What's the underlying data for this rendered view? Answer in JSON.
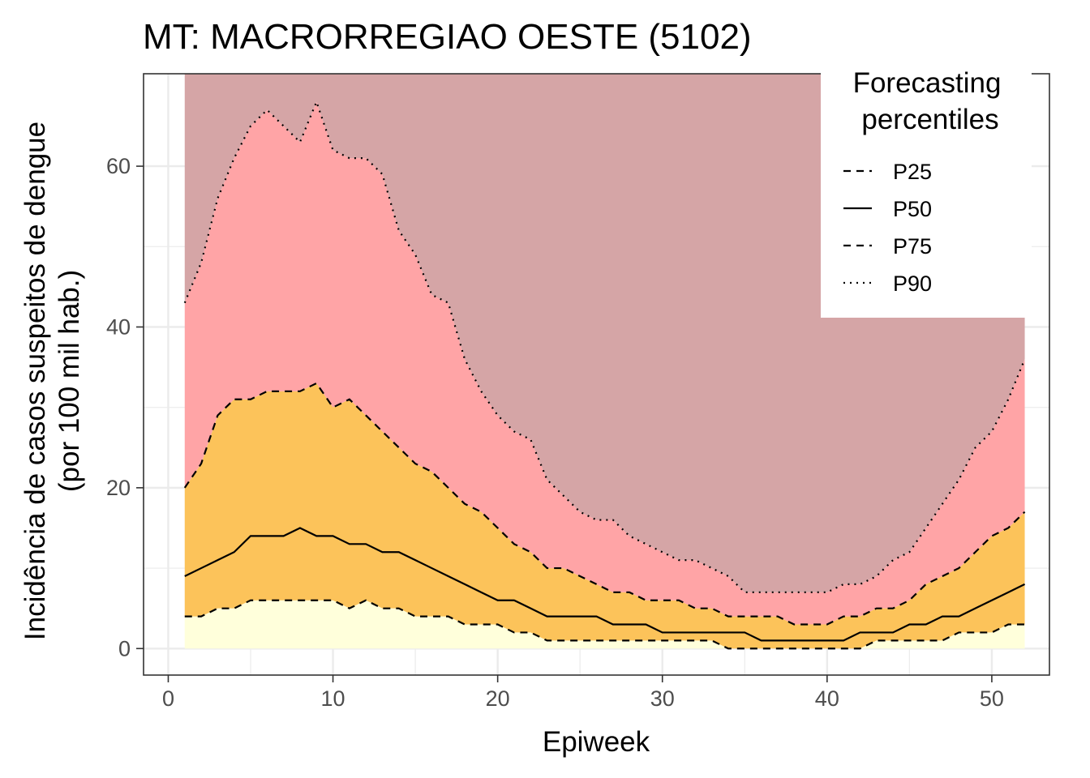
{
  "chart_data": {
    "type": "area",
    "title": "MT: MACRORREGIAO OESTE (5102)",
    "xlabel": "Epiweek",
    "ylabel_line1": "Incidência de casos suspeitos de dengue",
    "ylabel_line2": "(por 100 mil hab.)",
    "xlim": [
      -1.5,
      53.5
    ],
    "ylim": [
      -3.3,
      71.5
    ],
    "x_ticks": [
      0,
      10,
      20,
      30,
      40,
      50
    ],
    "y_ticks": [
      0,
      20,
      40,
      60
    ],
    "grid": true,
    "legend": {
      "title_line1": "Forecasting",
      "title_line2": "percentiles",
      "position": "top-right",
      "entries": [
        "P25",
        "P50",
        "P75",
        "P90"
      ]
    },
    "band_colors": {
      "below_p25": "#ffffdb",
      "p25_p75": "#fcc35a",
      "p75_p90": "#ffa4a6",
      "above_p90": "#d5a5a6"
    },
    "x": [
      1,
      2,
      3,
      4,
      5,
      6,
      7,
      8,
      9,
      10,
      11,
      12,
      13,
      14,
      15,
      16,
      17,
      18,
      19,
      20,
      21,
      22,
      23,
      24,
      25,
      26,
      27,
      28,
      29,
      30,
      31,
      32,
      33,
      34,
      35,
      36,
      37,
      38,
      39,
      40,
      41,
      42,
      43,
      44,
      45,
      46,
      47,
      48,
      49,
      50,
      51,
      52
    ],
    "series": [
      {
        "name": "P25",
        "dash": "dashed",
        "values": [
          4,
          4,
          5,
          5,
          6,
          6,
          6,
          6,
          6,
          6,
          5,
          6,
          5,
          5,
          4,
          4,
          4,
          3,
          3,
          3,
          2,
          2,
          1,
          1,
          1,
          1,
          1,
          1,
          1,
          1,
          1,
          1,
          1,
          0,
          0,
          0,
          0,
          0,
          0,
          0,
          0,
          0,
          1,
          1,
          1,
          1,
          1,
          2,
          2,
          2,
          3,
          3
        ]
      },
      {
        "name": "P50",
        "dash": "solid",
        "values": [
          9,
          10,
          11,
          12,
          14,
          14,
          14,
          15,
          14,
          14,
          13,
          13,
          12,
          12,
          11,
          10,
          9,
          8,
          7,
          6,
          6,
          5,
          4,
          4,
          4,
          4,
          3,
          3,
          3,
          2,
          2,
          2,
          2,
          2,
          2,
          1,
          1,
          1,
          1,
          1,
          1,
          2,
          2,
          2,
          3,
          3,
          4,
          4,
          5,
          6,
          7,
          8
        ]
      },
      {
        "name": "P75",
        "dash": "dashed",
        "values": [
          20,
          23,
          29,
          31,
          31,
          32,
          32,
          32,
          33,
          30,
          31,
          29,
          27,
          25,
          23,
          22,
          20,
          18,
          17,
          15,
          13,
          12,
          10,
          10,
          9,
          8,
          7,
          7,
          6,
          6,
          6,
          5,
          5,
          4,
          4,
          4,
          4,
          3,
          3,
          3,
          4,
          4,
          5,
          5,
          6,
          8,
          9,
          10,
          12,
          14,
          15,
          17
        ]
      },
      {
        "name": "P90",
        "dash": "dotted",
        "values": [
          43,
          48,
          56,
          61,
          65,
          67,
          65,
          63,
          68,
          62,
          61,
          61,
          59,
          52,
          49,
          44,
          43,
          36,
          32,
          29,
          27,
          26,
          21,
          19,
          17,
          16,
          16,
          14,
          13,
          12,
          11,
          11,
          10,
          9,
          7,
          7,
          7,
          7,
          7,
          7,
          8,
          8,
          9,
          11,
          12,
          15,
          18,
          21,
          25,
          27,
          31,
          36
        ]
      }
    ],
    "max_band_top": 71.5
  }
}
